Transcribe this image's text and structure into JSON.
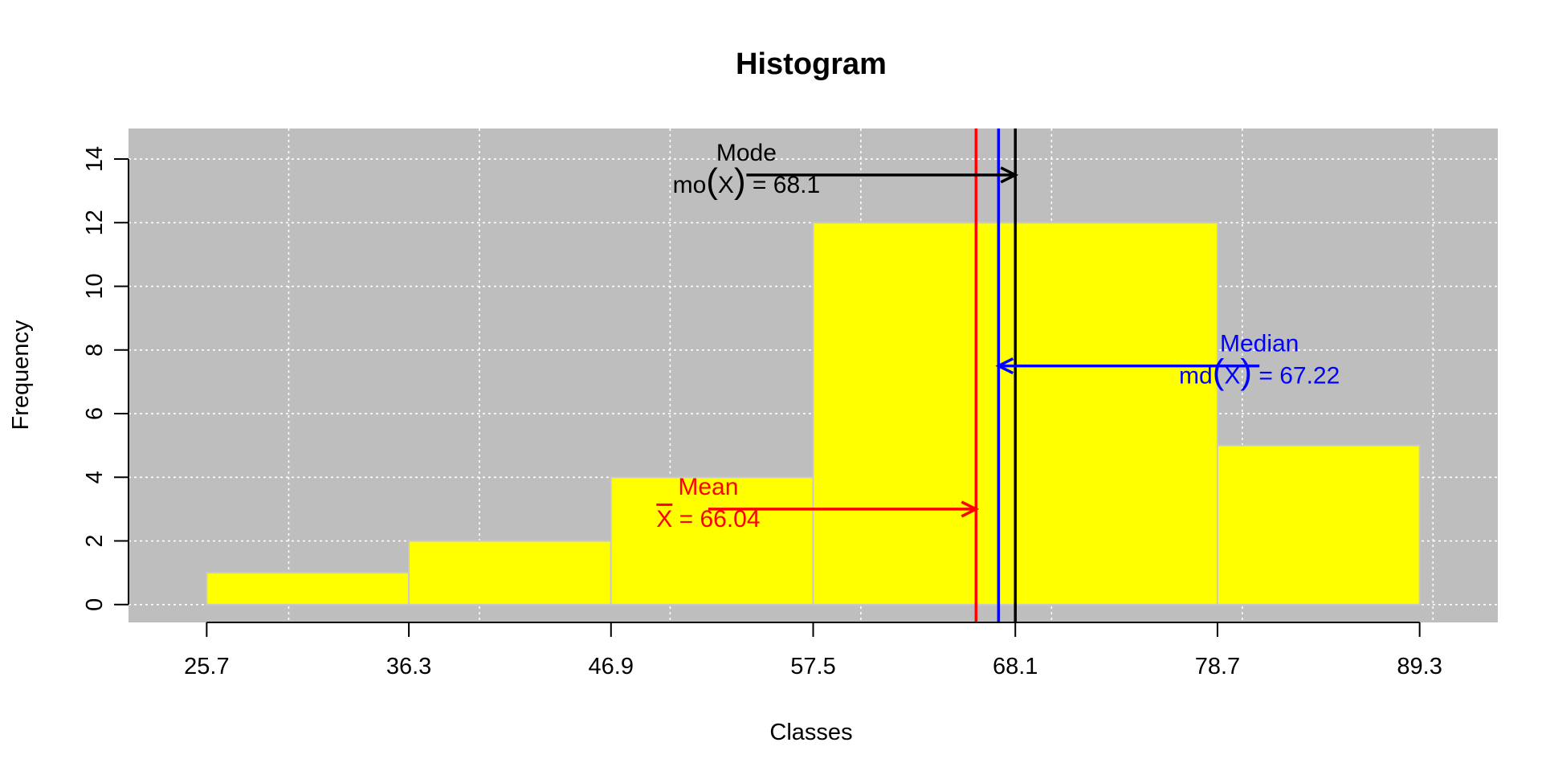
{
  "chart_data": {
    "type": "bar",
    "title": "Histogram",
    "xlabel": "Classes",
    "ylabel": "Frequency",
    "class_breaks": [
      25.7,
      36.3,
      46.9,
      57.5,
      68.1,
      78.7,
      89.3
    ],
    "x_tick_labels": [
      "25.7",
      "36.3",
      "46.9",
      "57.5",
      "68.1",
      "78.7",
      "89.3"
    ],
    "values": [
      1,
      2,
      4,
      12,
      12,
      5
    ],
    "y_ticks": [
      0,
      2,
      4,
      6,
      8,
      10,
      12,
      14
    ],
    "xlim": [
      21.6,
      93.4
    ],
    "ylim": [
      -0.56,
      14.96
    ],
    "grid": true,
    "colors": {
      "background": "#bebebe",
      "bar_fill": "#ffff00",
      "bar_border": "#c8c8c8",
      "grid": "#ffffff",
      "mean": "#ff0000",
      "median": "#0000ff",
      "mode": "#000000"
    },
    "annotations": [
      {
        "id": "mean",
        "label": "Mean",
        "value": 66.04,
        "value_text": "66.04",
        "symbol": "X",
        "equals": "=",
        "arrow_from_x": 52.0,
        "arrow_y": 3,
        "color": "#ff0000"
      },
      {
        "id": "median",
        "label": "Median",
        "value": 67.22,
        "value_text": "67.22",
        "func": "md",
        "symbol": "X",
        "equals": "=",
        "arrow_from_x": 80.9,
        "arrow_y": 7.5,
        "color": "#0000ff"
      },
      {
        "id": "mode",
        "label": "Mode",
        "value": 68.1,
        "value_text": "68.1",
        "func": "mo",
        "symbol": "X",
        "equals": "=",
        "arrow_from_x": 54.0,
        "arrow_y": 13.5,
        "color": "#000000"
      }
    ]
  }
}
